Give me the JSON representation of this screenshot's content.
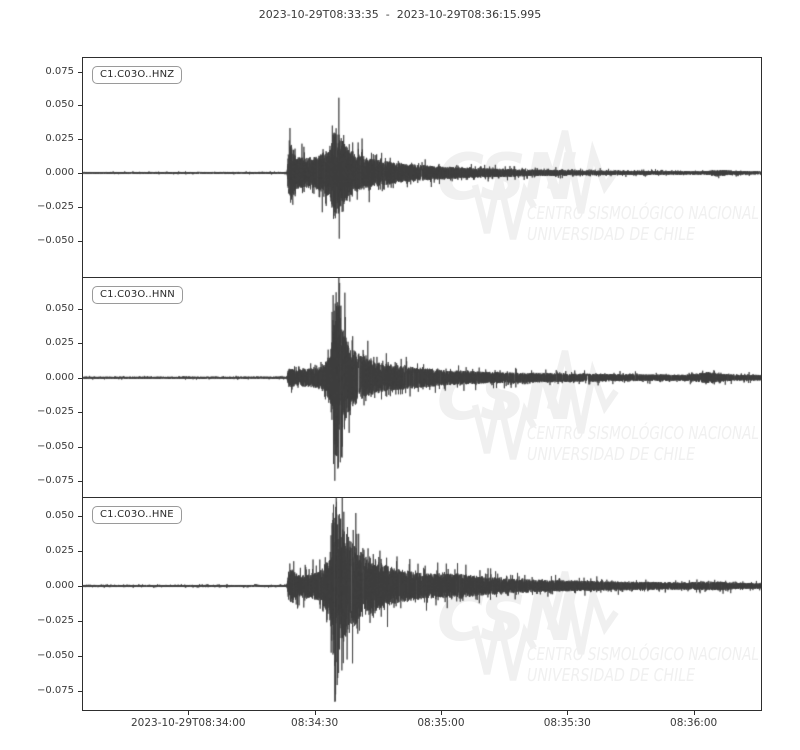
{
  "title": "2023-10-29T08:33:35  -  2023-10-29T08:36:15.995",
  "colors": {
    "trace": "#3d3d3d",
    "axis": "#2e2e2e",
    "text": "#3a3a3a",
    "watermark": "#f0f0f0",
    "label_border": "#9a9a9a"
  },
  "watermark": {
    "logo": "CSN",
    "line1": "CENTRO SISMOLÓGICO NACIONAL",
    "line2": "UNIVERSIDAD DE CHILE"
  },
  "chart_data": {
    "type": "line",
    "title": "2023-10-29T08:33:35  -  2023-10-29T08:36:15.995",
    "x_start": "2023-10-29T08:33:35",
    "x_end": "2023-10-29T08:36:15.995",
    "duration_s": 160.995,
    "grid": false,
    "xticks": [
      {
        "t": 25,
        "label": "2023-10-29T08:34:00"
      },
      {
        "t": 55,
        "label": "08:34:30"
      },
      {
        "t": 85,
        "label": "08:35:00"
      },
      {
        "t": 115,
        "label": "08:35:30"
      },
      {
        "t": 145,
        "label": "08:36:00"
      }
    ],
    "series": [
      {
        "name": "C1.C03O..HNZ",
        "seed": 101,
        "ylim": [
          -0.077,
          0.085
        ],
        "yticks": [
          {
            "v": 0.075,
            "label": "0.075"
          },
          {
            "v": 0.05,
            "label": "0.050"
          },
          {
            "v": 0.025,
            "label": "0.025"
          },
          {
            "v": 0.0,
            "label": "0.000"
          },
          {
            "v": -0.025,
            "label": "−0.025"
          },
          {
            "v": -0.05,
            "label": "−0.050"
          }
        ],
        "envelope": [
          [
            0,
            0.0006
          ],
          [
            48.4,
            0.0006
          ],
          [
            48.8,
            0.016
          ],
          [
            49.6,
            0.022
          ],
          [
            50.5,
            0.012
          ],
          [
            53,
            0.011
          ],
          [
            56,
            0.013
          ],
          [
            58.5,
            0.018
          ],
          [
            59.6,
            0.033
          ],
          [
            61.5,
            0.026
          ],
          [
            63.5,
            0.017
          ],
          [
            66,
            0.013
          ],
          [
            69,
            0.01
          ],
          [
            73,
            0.0085
          ],
          [
            78,
            0.0065
          ],
          [
            84,
            0.005
          ],
          [
            92,
            0.0038
          ],
          [
            102,
            0.0028
          ],
          [
            115,
            0.002
          ],
          [
            128,
            0.0016
          ],
          [
            140,
            0.0013
          ],
          [
            147,
            0.0012
          ],
          [
            152,
            0.0022
          ],
          [
            154.5,
            0.0014
          ],
          [
            158,
            0.0012
          ],
          [
            160.995,
            0.0011
          ]
        ],
        "spikes": [
          [
            49.0,
            0.024
          ],
          [
            49.3,
            -0.022
          ],
          [
            59.2,
            0.035
          ],
          [
            59.5,
            -0.034
          ],
          [
            60.1,
            0.033
          ],
          [
            60.7,
            -0.03
          ],
          [
            61.9,
            0.028
          ]
        ]
      },
      {
        "name": "C1.C03O..HNN",
        "seed": 202,
        "ylim": [
          -0.0866,
          0.0724
        ],
        "yticks": [
          {
            "v": 0.05,
            "label": "0.050"
          },
          {
            "v": 0.025,
            "label": "0.025"
          },
          {
            "v": 0.0,
            "label": "0.000"
          },
          {
            "v": -0.025,
            "label": "−0.025"
          },
          {
            "v": -0.05,
            "label": "−0.050"
          },
          {
            "v": -0.075,
            "label": "−0.075"
          }
        ],
        "envelope": [
          [
            0,
            0.0007
          ],
          [
            48.4,
            0.0007
          ],
          [
            48.8,
            0.007
          ],
          [
            51,
            0.006
          ],
          [
            54,
            0.007
          ],
          [
            57,
            0.0085
          ],
          [
            58.8,
            0.018
          ],
          [
            59.6,
            0.065
          ],
          [
            60.8,
            0.052
          ],
          [
            61.8,
            0.036
          ],
          [
            63,
            0.026
          ],
          [
            64.5,
            0.02
          ],
          [
            66.5,
            0.015
          ],
          [
            69,
            0.012
          ],
          [
            72,
            0.01
          ],
          [
            76,
            0.0085
          ],
          [
            81,
            0.007
          ],
          [
            87,
            0.0055
          ],
          [
            94,
            0.0045
          ],
          [
            102,
            0.0038
          ],
          [
            112,
            0.0032
          ],
          [
            122,
            0.0028
          ],
          [
            133,
            0.0024
          ],
          [
            143,
            0.0022
          ],
          [
            148.5,
            0.0042
          ],
          [
            151,
            0.003
          ],
          [
            155,
            0.0022
          ],
          [
            160.995,
            0.002
          ]
        ],
        "spikes": [
          [
            59.4,
            0.06
          ],
          [
            59.8,
            -0.0748
          ],
          [
            60.1,
            0.062
          ],
          [
            60.5,
            -0.066
          ],
          [
            61.0,
            0.052
          ],
          [
            61.5,
            -0.058
          ],
          [
            62.3,
            0.044
          ],
          [
            63.2,
            -0.04
          ]
        ]
      },
      {
        "name": "C1.C03O..HNE",
        "seed": 303,
        "ylim": [
          -0.0884,
          0.0627
        ],
        "yticks": [
          {
            "v": 0.05,
            "label": "0.050"
          },
          {
            "v": 0.025,
            "label": "0.025"
          },
          {
            "v": 0.0,
            "label": "0.000"
          },
          {
            "v": -0.025,
            "label": "−0.025"
          },
          {
            "v": -0.05,
            "label": "−0.050"
          },
          {
            "v": -0.075,
            "label": "−0.075"
          }
        ],
        "envelope": [
          [
            0,
            0.0007
          ],
          [
            48.4,
            0.0007
          ],
          [
            48.8,
            0.01
          ],
          [
            49.6,
            0.013
          ],
          [
            51,
            0.008
          ],
          [
            54,
            0.009
          ],
          [
            56.5,
            0.011
          ],
          [
            58.5,
            0.022
          ],
          [
            59.6,
            0.062
          ],
          [
            60.8,
            0.05
          ],
          [
            62,
            0.04
          ],
          [
            63.5,
            0.033
          ],
          [
            65,
            0.027
          ],
          [
            67,
            0.022
          ],
          [
            69.5,
            0.018
          ],
          [
            72,
            0.015
          ],
          [
            75,
            0.012
          ],
          [
            79,
            0.01
          ],
          [
            84,
            0.0085
          ],
          [
            89,
            0.009
          ],
          [
            94,
            0.007
          ],
          [
            100,
            0.0055
          ],
          [
            108,
            0.0045
          ],
          [
            117,
            0.0038
          ],
          [
            126,
            0.0032
          ],
          [
            135,
            0.0028
          ],
          [
            142,
            0.0026
          ],
          [
            147,
            0.003
          ],
          [
            151,
            0.0032
          ],
          [
            155,
            0.0024
          ],
          [
            160.995,
            0.002
          ]
        ],
        "spikes": [
          [
            49.1,
            0.016
          ],
          [
            59.5,
            0.058
          ],
          [
            59.9,
            -0.082
          ],
          [
            60.2,
            0.06
          ],
          [
            60.7,
            -0.062
          ],
          [
            61.2,
            0.048
          ],
          [
            61.8,
            -0.055
          ],
          [
            62.8,
            0.042
          ]
        ]
      }
    ]
  }
}
